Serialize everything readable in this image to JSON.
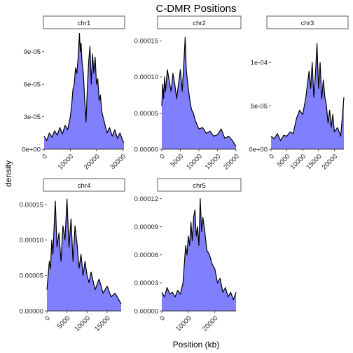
{
  "chart_data": {
    "type": "area",
    "title": "C-DMR Positions",
    "xlabel": "Position (kb)",
    "ylabel": "density",
    "fill_color": "#8080FF",
    "line_color": "#000000",
    "panels": [
      {
        "name": "chr1",
        "xlim": [
          0,
          30500
        ],
        "ylim": [
          0,
          0.000108
        ],
        "x_ticks": [
          0,
          10000,
          20000,
          30000
        ],
        "x_tick_labels": [
          "0",
          "10000",
          "20000",
          "30000"
        ],
        "y_ticks": [
          0,
          3e-05,
          6e-05,
          9e-05
        ],
        "y_tick_labels": [
          "0e+00",
          "3e-05",
          "6e-05",
          "9e-05"
        ],
        "x": [
          0,
          1000,
          2000,
          3000,
          4000,
          5000,
          6000,
          7000,
          8000,
          9000,
          10000,
          10500,
          11000,
          11500,
          12000,
          12500,
          13000,
          13500,
          13800,
          14100,
          14500,
          15000,
          15500,
          16000,
          16500,
          17000,
          17500,
          18000,
          18500,
          19000,
          19500,
          20000,
          20500,
          21000,
          21500,
          22000,
          23000,
          24000,
          25000,
          26000,
          27000,
          28000,
          29000,
          30000,
          30500
        ],
        "values": [
          1.2e-05,
          8e-06,
          1.5e-05,
          1.1e-05,
          1.7e-05,
          1.3e-05,
          2e-05,
          1.4e-05,
          2.2e-05,
          1.8e-05,
          3e-05,
          4e-05,
          5.5e-05,
          6e-05,
          7.5e-05,
          7e-05,
          8.5e-05,
          0.000107,
          9e-05,
          9.8e-05,
          8e-05,
          7e-05,
          4.5e-05,
          2.5e-05,
          5.5e-05,
          8e-05,
          9.5e-05,
          6e-05,
          8.8e-05,
          7e-05,
          8.5e-05,
          6e-05,
          6.5e-05,
          4.5e-05,
          5e-05,
          3.5e-05,
          2.5e-05,
          1.5e-05,
          2e-05,
          1.2e-05,
          1.8e-05,
          1e-05,
          1.5e-05,
          8e-06,
          6e-06
        ]
      },
      {
        "name": "chr2",
        "xlim": [
          0,
          20000
        ],
        "ylim": [
          0,
          0.000162
        ],
        "x_ticks": [
          0,
          5000,
          10000,
          15000,
          20000
        ],
        "x_tick_labels": [
          "0",
          "5000",
          "10000",
          "15000",
          "20000"
        ],
        "y_ticks": [
          0,
          5e-05,
          0.0001,
          0.00015
        ],
        "y_tick_labels": [
          "0.00000",
          "0.00005",
          "0.00010",
          "0.00015"
        ],
        "x": [
          0,
          250,
          500,
          750,
          1000,
          1500,
          2000,
          2500,
          3000,
          3500,
          4000,
          4500,
          5000,
          5500,
          6000,
          6300,
          6600,
          7000,
          7500,
          8000,
          8500,
          9000,
          10000,
          11000,
          12000,
          13000,
          14000,
          15000,
          16000,
          17000,
          18000,
          19000,
          20000
        ],
        "values": [
          6e-05,
          9e-05,
          7e-05,
          0.0001,
          8e-05,
          0.00011,
          9.5e-05,
          8e-05,
          0.000105,
          9e-05,
          7e-05,
          9e-05,
          0.00011,
          8e-05,
          0.000125,
          0.000155,
          0.00011,
          9e-05,
          7e-05,
          5.5e-05,
          5e-05,
          4e-05,
          2.8e-05,
          3e-05,
          2.2e-05,
          2.5e-05,
          1.8e-05,
          2e-05,
          2.8e-05,
          1.5e-05,
          1.8e-05,
          1.2e-05,
          4e-06
        ]
      },
      {
        "name": "chr3",
        "xlim": [
          0,
          23000
        ],
        "ylim": [
          0,
          0.000135
        ],
        "x_ticks": [
          0,
          5000,
          10000,
          15000,
          20000
        ],
        "x_tick_labels": [
          "0",
          "5000",
          "10000",
          "15000",
          "20000"
        ],
        "y_ticks": [
          0,
          5e-05,
          0.0001
        ],
        "y_tick_labels": [
          "0e+00",
          "5e-05",
          "1e-04"
        ],
        "x": [
          0,
          1000,
          2000,
          3000,
          4000,
          5000,
          6000,
          7000,
          8000,
          9000,
          10000,
          11000,
          11500,
          12000,
          12500,
          13000,
          13500,
          14000,
          14500,
          15000,
          15500,
          16000,
          16500,
          17000,
          17500,
          18000,
          18500,
          19000,
          19500,
          20000,
          21000,
          22000,
          23000
        ],
        "values": [
          1.5e-05,
          1.2e-05,
          1.8e-05,
          1e-05,
          1.6e-05,
          1.5e-05,
          2e-05,
          1.8e-05,
          3.5e-05,
          4.5e-05,
          4e-05,
          6e-05,
          7.5e-05,
          9e-05,
          7e-05,
          0.0001,
          6e-05,
          8.5e-05,
          0.000122,
          7e-05,
          0.0001,
          5.8e-05,
          8e-05,
          6e-05,
          5e-05,
          3e-05,
          4.5e-05,
          2.5e-05,
          4e-05,
          2e-05,
          2.5e-05,
          1.5e-05,
          6e-05
        ]
      },
      {
        "name": "chr4",
        "xlim": [
          0,
          18500
        ],
        "ylim": [
          0,
          0.000165
        ],
        "x_ticks": [
          0,
          5000,
          10000,
          15000
        ],
        "x_tick_labels": [
          "0",
          "5000",
          "10000",
          "15000"
        ],
        "y_ticks": [
          0,
          5e-05,
          0.0001,
          0.00015
        ],
        "y_tick_labels": [
          "0.00000",
          "0.00005",
          "0.00010",
          "0.00015"
        ],
        "x": [
          0,
          300,
          600,
          900,
          1200,
          1500,
          1800,
          2100,
          2500,
          3000,
          3500,
          4000,
          4500,
          5000,
          5500,
          6000,
          6500,
          7000,
          7500,
          8000,
          8500,
          9000,
          9500,
          10000,
          10500,
          11000,
          12000,
          13000,
          14000,
          15000,
          16000,
          17000,
          18000,
          18500
        ],
        "values": [
          3e-05,
          5e-05,
          7e-05,
          6e-05,
          0.0001,
          8e-05,
          0.00012,
          0.000155,
          9e-05,
          0.00011,
          7e-05,
          0.00012,
          0.0001,
          0.000158,
          9e-05,
          0.00013,
          7e-05,
          0.00012,
          9.5e-05,
          6e-05,
          8e-05,
          5e-05,
          7e-05,
          5e-05,
          4e-05,
          5.5e-05,
          3e-05,
          4.5e-05,
          2.5e-05,
          3.5e-05,
          2e-05,
          2.5e-05,
          1.5e-05,
          1e-05
        ]
      },
      {
        "name": "chr5",
        "xlim": [
          0,
          28000
        ],
        "ylim": [
          0,
          0.000125
        ],
        "x_ticks": [
          0,
          10000,
          20000
        ],
        "x_tick_labels": [
          "0",
          "10000",
          "20000"
        ],
        "y_ticks": [
          0,
          3e-05,
          6e-05,
          9e-05,
          0.00012
        ],
        "y_tick_labels": [
          "0.00000",
          "0.00003",
          "0.00006",
          "0.00009",
          "0.00012"
        ],
        "x": [
          0,
          1000,
          2000,
          3000,
          4000,
          5000,
          6000,
          7000,
          8000,
          8500,
          9000,
          9500,
          10000,
          10500,
          11000,
          11500,
          12000,
          12500,
          13000,
          13500,
          14000,
          14500,
          15000,
          15500,
          16000,
          17000,
          18000,
          19000,
          20000,
          21000,
          22000,
          23000,
          24000,
          25000,
          26000,
          27000,
          28000
        ],
        "values": [
          2e-05,
          1.5e-05,
          2.5e-05,
          1.8e-05,
          2e-05,
          1.5e-05,
          2.2e-05,
          1.8e-05,
          3e-05,
          5e-05,
          7e-05,
          6e-05,
          8e-05,
          7e-05,
          9.5e-05,
          7.5e-05,
          0.0001,
          0.000108,
          8e-05,
          9e-05,
          7e-05,
          0.00012,
          8.5e-05,
          0.0001,
          9e-05,
          6.5e-05,
          6e-05,
          5e-05,
          4.5e-05,
          3e-05,
          3.5e-05,
          2e-05,
          2.5e-05,
          1.5e-05,
          2e-05,
          1.2e-05,
          2e-05
        ]
      }
    ]
  }
}
